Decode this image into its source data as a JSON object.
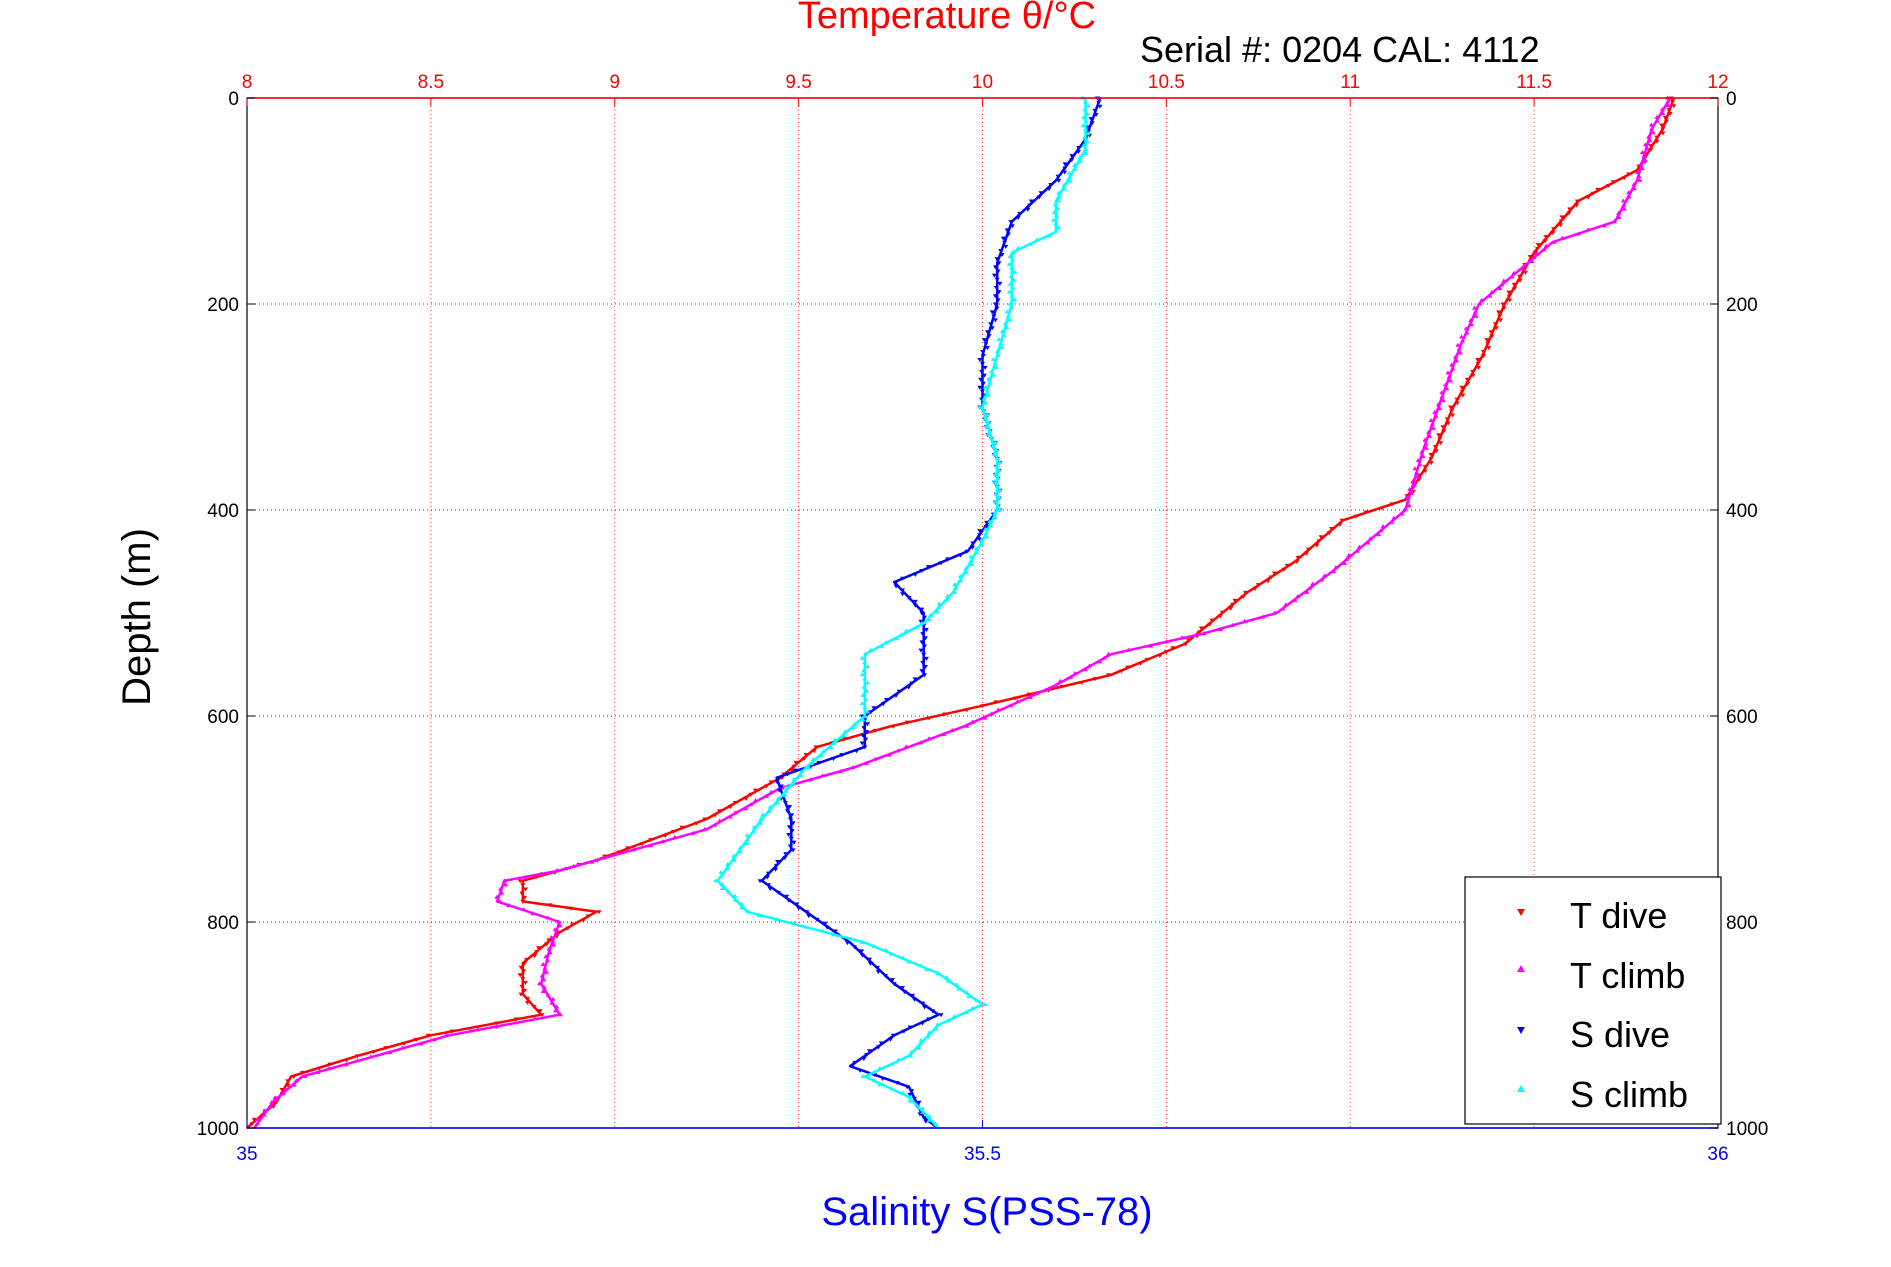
{
  "chart_data": {
    "type": "scatter",
    "title": "Temperature θ/°C",
    "annotation": "Serial #: 0204  CAL: 4112",
    "xlabel_top": "Temperature θ/°C",
    "xlabel_bottom": "Salinity S(PSS-78)",
    "ylabel": "Depth (m)",
    "temp_axis": {
      "min": 8,
      "max": 12,
      "ticks": [
        "8",
        "8.5",
        "9",
        "9.5",
        "10",
        "10.5",
        "11",
        "11.5",
        "12"
      ],
      "color": "#ff0000"
    },
    "sal_axis": {
      "min": 35,
      "max": 36,
      "ticks": [
        "35",
        "35.5",
        "36"
      ],
      "color": "#0000ff"
    },
    "depth_axis": {
      "min": 0,
      "max": 1000,
      "reversed": true,
      "ticks": [
        "0",
        "200",
        "400",
        "600",
        "800",
        "1000"
      ]
    },
    "grid": true,
    "legend": {
      "placement": "bottom-right",
      "entries": [
        "T dive",
        "T climb",
        "S dive",
        "S climb"
      ]
    },
    "series": [
      {
        "name": "T dive",
        "axis": "temperature",
        "color": "#ff0000",
        "marker": "triangle-down",
        "points": [
          [
            11.88,
            0
          ],
          [
            11.85,
            30
          ],
          [
            11.78,
            70
          ],
          [
            11.62,
            100
          ],
          [
            11.5,
            150
          ],
          [
            11.42,
            200
          ],
          [
            11.36,
            250
          ],
          [
            11.28,
            300
          ],
          [
            11.22,
            350
          ],
          [
            11.15,
            390
          ],
          [
            10.98,
            410
          ],
          [
            10.85,
            450
          ],
          [
            10.72,
            480
          ],
          [
            10.55,
            530
          ],
          [
            10.35,
            560
          ],
          [
            10.0,
            590
          ],
          [
            9.75,
            610
          ],
          [
            9.55,
            630
          ],
          [
            9.45,
            660
          ],
          [
            9.25,
            700
          ],
          [
            8.95,
            740
          ],
          [
            8.75,
            760
          ],
          [
            8.75,
            780
          ],
          [
            8.95,
            790
          ],
          [
            8.85,
            810
          ],
          [
            8.75,
            840
          ],
          [
            8.75,
            870
          ],
          [
            8.8,
            890
          ],
          [
            8.5,
            910
          ],
          [
            8.3,
            930
          ],
          [
            8.12,
            950
          ],
          [
            8.08,
            975
          ],
          [
            8.0,
            1000
          ]
        ]
      },
      {
        "name": "T climb",
        "axis": "temperature",
        "color": "#ff00ff",
        "marker": "triangle-up",
        "points": [
          [
            11.87,
            0
          ],
          [
            11.82,
            30
          ],
          [
            11.78,
            80
          ],
          [
            11.72,
            120
          ],
          [
            11.55,
            140
          ],
          [
            11.45,
            170
          ],
          [
            11.35,
            200
          ],
          [
            11.3,
            240
          ],
          [
            11.25,
            290
          ],
          [
            11.2,
            340
          ],
          [
            11.15,
            400
          ],
          [
            10.95,
            460
          ],
          [
            10.8,
            500
          ],
          [
            10.6,
            520
          ],
          [
            10.35,
            540
          ],
          [
            10.2,
            570
          ],
          [
            9.95,
            610
          ],
          [
            9.65,
            650
          ],
          [
            9.45,
            670
          ],
          [
            9.25,
            710
          ],
          [
            9.05,
            730
          ],
          [
            8.85,
            750
          ],
          [
            8.7,
            760
          ],
          [
            8.68,
            780
          ],
          [
            8.85,
            800
          ],
          [
            8.82,
            830
          ],
          [
            8.8,
            860
          ],
          [
            8.85,
            890
          ],
          [
            8.55,
            910
          ],
          [
            8.3,
            935
          ],
          [
            8.15,
            950
          ],
          [
            8.07,
            975
          ],
          [
            8.02,
            1000
          ]
        ]
      },
      {
        "name": "S dive",
        "axis": "salinity",
        "color": "#0000ff",
        "marker": "triangle-down",
        "points": [
          [
            35.58,
            0
          ],
          [
            35.57,
            40
          ],
          [
            35.55,
            80
          ],
          [
            35.52,
            120
          ],
          [
            35.51,
            160
          ],
          [
            35.51,
            200
          ],
          [
            35.5,
            250
          ],
          [
            35.5,
            300
          ],
          [
            35.51,
            350
          ],
          [
            35.51,
            400
          ],
          [
            35.49,
            440
          ],
          [
            35.44,
            470
          ],
          [
            35.46,
            500
          ],
          [
            35.46,
            560
          ],
          [
            35.42,
            600
          ],
          [
            35.42,
            630
          ],
          [
            35.36,
            660
          ],
          [
            35.37,
            700
          ],
          [
            35.37,
            730
          ],
          [
            35.35,
            760
          ],
          [
            35.38,
            790
          ],
          [
            35.41,
            820
          ],
          [
            35.44,
            860
          ],
          [
            35.47,
            890
          ],
          [
            35.44,
            910
          ],
          [
            35.41,
            940
          ],
          [
            35.45,
            960
          ],
          [
            35.46,
            990
          ],
          [
            35.47,
            1000
          ]
        ]
      },
      {
        "name": "S climb",
        "axis": "salinity",
        "color": "#00ffff",
        "marker": "triangle-up",
        "points": [
          [
            35.57,
            0
          ],
          [
            35.57,
            50
          ],
          [
            35.55,
            100
          ],
          [
            35.55,
            130
          ],
          [
            35.52,
            150
          ],
          [
            35.52,
            200
          ],
          [
            35.51,
            250
          ],
          [
            35.5,
            300
          ],
          [
            35.51,
            350
          ],
          [
            35.51,
            400
          ],
          [
            35.5,
            430
          ],
          [
            35.48,
            480
          ],
          [
            35.46,
            510
          ],
          [
            35.42,
            540
          ],
          [
            35.42,
            560
          ],
          [
            35.42,
            600
          ],
          [
            35.38,
            650
          ],
          [
            35.35,
            700
          ],
          [
            35.33,
            740
          ],
          [
            35.32,
            760
          ],
          [
            35.34,
            790
          ],
          [
            35.42,
            820
          ],
          [
            35.47,
            850
          ],
          [
            35.5,
            880
          ],
          [
            35.47,
            900
          ],
          [
            35.45,
            930
          ],
          [
            35.42,
            950
          ],
          [
            35.45,
            970
          ],
          [
            35.47,
            1000
          ]
        ]
      }
    ]
  }
}
